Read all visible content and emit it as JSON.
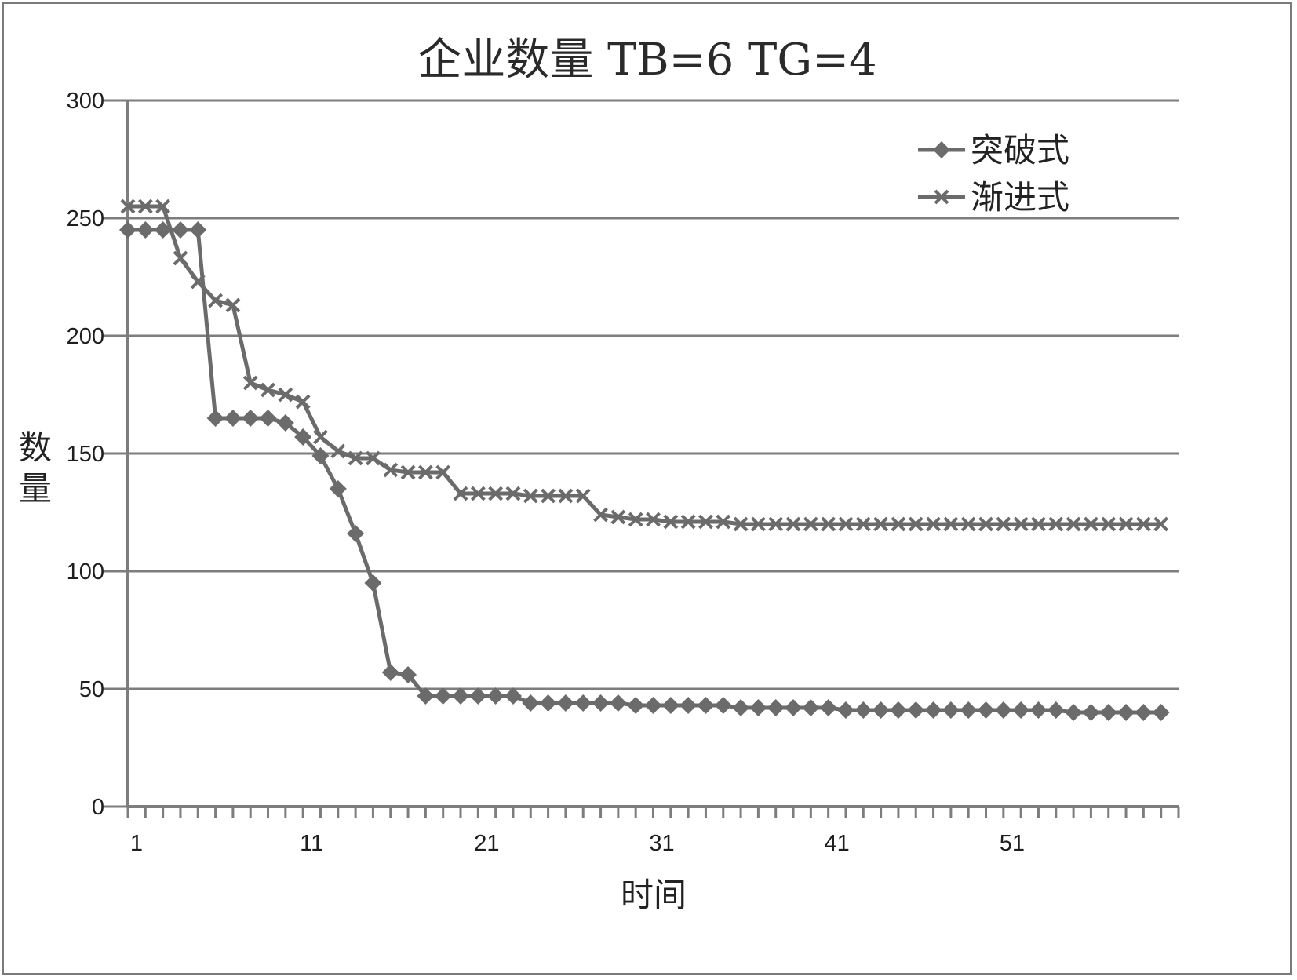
{
  "chart_data": {
    "type": "line",
    "title": "企业数量 TB=6 TG=4",
    "xlabel": "时间",
    "ylabel": "数量",
    "ylim": [
      0,
      300
    ],
    "yticks": [
      0,
      50,
      100,
      150,
      200,
      250,
      300
    ],
    "x_tick_labels": [
      "1",
      "11",
      "21",
      "31",
      "41",
      "51"
    ],
    "x": [
      1,
      2,
      3,
      4,
      5,
      6,
      7,
      8,
      9,
      10,
      11,
      12,
      13,
      14,
      15,
      16,
      17,
      18,
      19,
      20,
      21,
      22,
      23,
      24,
      25,
      26,
      27,
      28,
      29,
      30,
      31,
      32,
      33,
      34,
      35,
      36,
      37,
      38,
      39,
      40,
      41,
      42,
      43,
      44,
      45,
      46,
      47,
      48,
      49,
      50,
      51,
      52,
      53,
      54,
      55,
      56,
      57,
      58,
      59,
      60
    ],
    "grid": true,
    "legend_position": "top-right",
    "series": [
      {
        "name": "突破式",
        "marker": "diamond",
        "color": "#6b6b6b",
        "values": [
          245,
          245,
          245,
          245,
          245,
          165,
          165,
          165,
          165,
          163,
          157,
          149,
          135,
          116,
          95,
          57,
          56,
          47,
          47,
          47,
          47,
          47,
          47,
          44,
          44,
          44,
          44,
          44,
          44,
          43,
          43,
          43,
          43,
          43,
          43,
          42,
          42,
          42,
          42,
          42,
          42,
          41,
          41,
          41,
          41,
          41,
          41,
          41,
          41,
          41,
          41,
          41,
          41,
          41,
          40,
          40,
          40,
          40,
          40,
          40
        ]
      },
      {
        "name": "渐进式",
        "marker": "x",
        "color": "#6b6b6b",
        "values": [
          255,
          255,
          255,
          233,
          223,
          215,
          213,
          180,
          177,
          175,
          172,
          157,
          151,
          148,
          148,
          143,
          142,
          142,
          142,
          133,
          133,
          133,
          133,
          132,
          132,
          132,
          132,
          124,
          123,
          122,
          122,
          121,
          121,
          121,
          121,
          120,
          120,
          120,
          120,
          120,
          120,
          120,
          120,
          120,
          120,
          120,
          120,
          120,
          120,
          120,
          120,
          120,
          120,
          120,
          120,
          120,
          120,
          120,
          120,
          120
        ]
      }
    ]
  }
}
